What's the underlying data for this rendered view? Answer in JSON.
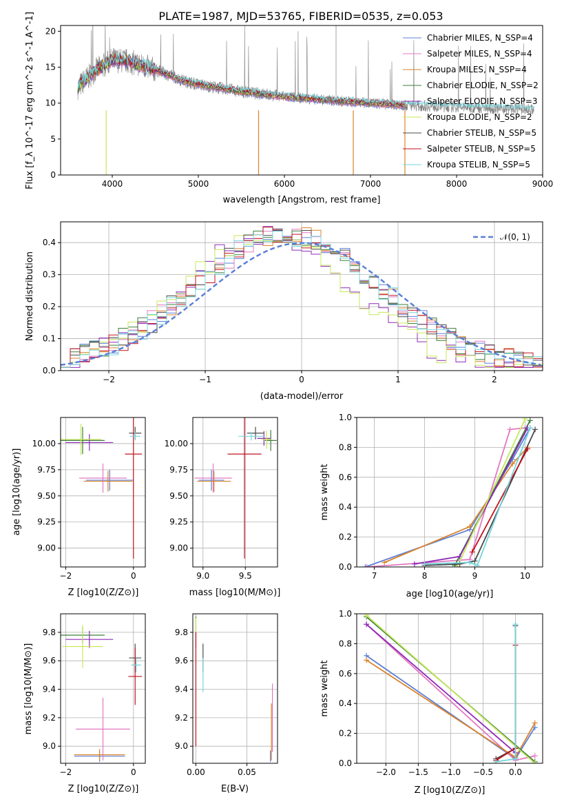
{
  "title": "PLATE=1987, MJD=53765, FIBERID=0535, z=0.053",
  "colors": {
    "Chabrier MILES": "#5b7fd6",
    "Salpeter MILES": "#e377c2",
    "Kroupa MILES": "#d9822b",
    "Chabrier ELODIE": "#3a7d3a",
    "Salpeter ELODIE": "#8e2ab7",
    "Kroupa ELODIE": "#c6e85a",
    "Chabrier STELIB": "#4a4a4a",
    "Salpeter STELIB": "#c1121f",
    "Kroupa STELIB": "#74d4dc"
  },
  "chart_data": [
    {
      "id": "spectrum",
      "type": "line",
      "xlabel": "wavelength [Angstrom, rest frame]",
      "ylabel": "Flux [f_λ 10^-17 erg cm^-2 s^-1 A^-1]",
      "xlim": [
        3400,
        9000
      ],
      "ylim": [
        0,
        20.8
      ],
      "xticks": [
        4000,
        5000,
        6000,
        7000,
        8000,
        9000
      ],
      "yticks": [
        0,
        5,
        10,
        15,
        20
      ],
      "legend_position": "top-right",
      "continuum": {
        "x": [
          3600,
          3800,
          4000,
          4200,
          4400,
          4600,
          4800,
          5000,
          5500,
          6000,
          6500,
          7000,
          7400
        ],
        "y": [
          12.2,
          14.5,
          16.0,
          15.8,
          15.0,
          14.2,
          13.2,
          12.6,
          11.6,
          10.9,
          10.4,
          10.0,
          9.7
        ]
      },
      "series": [
        {
          "name": "Chabrier MILES, N_SSP=4"
        },
        {
          "name": "Salpeter MILES, N_SSP=4"
        },
        {
          "name": "Kroupa MILES, N_SSP=4"
        },
        {
          "name": "Chabrier ELODIE, N_SSP=2"
        },
        {
          "name": "Salpeter ELODIE, N_SSP=3"
        },
        {
          "name": "Kroupa ELODIE, N_SSP=2"
        },
        {
          "name": "Chabrier STELIB, N_SSP=5"
        },
        {
          "name": "Salpeter STELIB, N_SSP=5"
        },
        {
          "name": "Kroupa STELIB, N_SSP=5"
        }
      ]
    },
    {
      "id": "residuals",
      "type": "line",
      "xlabel": "(data-model)/error",
      "ylabel": "Normed distribution",
      "xlim": [
        -2.5,
        2.5
      ],
      "ylim": [
        0,
        0.465
      ],
      "xticks": [
        -2,
        -1,
        0,
        1,
        2
      ],
      "yticks": [
        0.0,
        0.1,
        0.2,
        0.3,
        0.4
      ],
      "legend_label": "𝒩(0, 1)",
      "grid": true
    },
    {
      "id": "age_vs_Z",
      "type": "scatter",
      "xlabel": "Z [log10(Z/Z⊙)]",
      "ylabel": "age  [log10(age/yr)]",
      "xlim": [
        -2.15,
        0.35
      ],
      "ylim": [
        8.82,
        10.25
      ],
      "xticks": [
        -2,
        0
      ],
      "yticks": [
        9.0,
        9.25,
        9.5,
        9.75,
        10.0
      ],
      "points": [
        {
          "series": "Chabrier MILES",
          "x": -0.7,
          "y": 9.65,
          "xerr": 0.7,
          "yerr": 0.1
        },
        {
          "series": "Salpeter MILES",
          "x": -0.9,
          "y": 9.67,
          "xerr": 0.7,
          "yerr": 0.14
        },
        {
          "series": "Kroupa MILES",
          "x": -0.75,
          "y": 9.64,
          "xerr": 0.72,
          "yerr": 0.1
        },
        {
          "series": "Chabrier ELODIE",
          "x": -1.5,
          "y": 10.03,
          "xerr": 0.65,
          "yerr": 0.13
        },
        {
          "series": "Salpeter ELODIE",
          "x": -1.3,
          "y": 10.01,
          "xerr": 0.7,
          "yerr": 0.08
        },
        {
          "series": "Kroupa ELODIE",
          "x": -1.55,
          "y": 10.04,
          "xerr": 0.6,
          "yerr": 0.15
        },
        {
          "series": "Chabrier STELIB",
          "x": 0.05,
          "y": 10.1,
          "xerr": 0.18,
          "yerr": 0.06
        },
        {
          "series": "Salpeter STELIB",
          "x": 0.0,
          "y": 9.9,
          "xerr": 0.25,
          "yerr": 1.0
        },
        {
          "series": "Kroupa STELIB",
          "x": 0.05,
          "y": 10.07,
          "xerr": 0.15,
          "yerr": 0.04
        }
      ]
    },
    {
      "id": "age_vs_mass",
      "type": "scatter",
      "xlabel": "mass [log10(M/M⊙)]",
      "xlim": [
        8.88,
        9.88
      ],
      "ylim": [
        8.82,
        10.25
      ],
      "xticks": [
        9.0,
        9.5
      ],
      "yticks": [
        9.0,
        9.25,
        9.5,
        9.75,
        10.0
      ],
      "points": [
        {
          "series": "Chabrier MILES",
          "x": 9.1,
          "y": 9.65,
          "xerr": 0.15,
          "yerr": 0.1
        },
        {
          "series": "Salpeter MILES",
          "x": 9.12,
          "y": 9.67,
          "xerr": 0.22,
          "yerr": 0.14
        },
        {
          "series": "Kroupa MILES",
          "x": 9.13,
          "y": 9.64,
          "xerr": 0.2,
          "yerr": 0.1
        },
        {
          "series": "Chabrier ELODIE",
          "x": 9.8,
          "y": 10.03,
          "xerr": 0.07,
          "yerr": 0.1
        },
        {
          "series": "Salpeter ELODIE",
          "x": 9.72,
          "y": 10.05,
          "xerr": 0.08,
          "yerr": 0.07
        },
        {
          "series": "Kroupa ELODIE",
          "x": 9.75,
          "y": 10.04,
          "xerr": 0.06,
          "yerr": 0.09
        },
        {
          "series": "Chabrier STELIB",
          "x": 9.62,
          "y": 10.1,
          "xerr": 0.1,
          "yerr": 0.06
        },
        {
          "series": "Salpeter STELIB",
          "x": 9.49,
          "y": 9.9,
          "xerr": 0.2,
          "yerr": 1.0
        },
        {
          "series": "Kroupa STELIB",
          "x": 9.57,
          "y": 10.07,
          "xerr": 0.15,
          "yerr": 0.04
        }
      ]
    },
    {
      "id": "weight_vs_age",
      "type": "line",
      "xlabel": "age  [log10(age/yr)]",
      "ylabel": "mass weight",
      "xlim": [
        6.65,
        10.35
      ],
      "ylim": [
        0,
        1.0
      ],
      "xticks": [
        7,
        8,
        9,
        10
      ],
      "yticks": [
        0.0,
        0.2,
        0.4,
        0.6,
        0.8,
        1.0
      ],
      "series": [
        {
          "series": "Chabrier MILES",
          "x": [
            6.82,
            8.9,
            9.75,
            10.1
          ],
          "y": [
            0.0,
            0.25,
            0.72,
            0.93
          ]
        },
        {
          "series": "Salpeter MILES",
          "x": [
            6.85,
            8.9,
            9.7,
            10.0
          ],
          "y": [
            0.0,
            0.05,
            0.92,
            0.93
          ]
        },
        {
          "series": "Kroupa MILES",
          "x": [
            7.2,
            8.9,
            9.75,
            10.05
          ],
          "y": [
            0.03,
            0.27,
            0.69,
            0.8
          ]
        },
        {
          "series": "Chabrier ELODIE",
          "x": [
            8.6,
            10.1
          ],
          "y": [
            0.01,
            0.98
          ]
        },
        {
          "series": "Salpeter ELODIE",
          "x": [
            7.8,
            8.7,
            10.05
          ],
          "y": [
            0.02,
            0.07,
            0.93
          ]
        },
        {
          "series": "Kroupa ELODIE",
          "x": [
            8.65,
            10.0
          ],
          "y": [
            0.0,
            0.99
          ]
        },
        {
          "series": "Chabrier STELIB",
          "x": [
            8.0,
            8.7,
            9.0,
            10.2
          ],
          "y": [
            0.01,
            0.02,
            0.04,
            0.92
          ]
        },
        {
          "series": "Salpeter STELIB",
          "x": [
            8.95,
            10.05
          ],
          "y": [
            0.1,
            0.79
          ]
        },
        {
          "series": "Kroupa STELIB",
          "x": [
            8.0,
            8.9,
            9.05,
            10.1
          ],
          "y": [
            0.02,
            0.03,
            0.01,
            0.93
          ]
        }
      ]
    },
    {
      "id": "mass_vs_Z",
      "type": "scatter",
      "xlabel": "Z [log10(Z/Z⊙)]",
      "ylabel": "mass [log10(M/M⊙)]",
      "xlim": [
        -2.15,
        0.35
      ],
      "ylim": [
        8.88,
        9.93
      ],
      "xticks": [
        -2,
        0
      ],
      "yticks": [
        9.0,
        9.2,
        9.4,
        9.6,
        9.8
      ],
      "points": [
        {
          "series": "Chabrier MILES",
          "x": -1.0,
          "y": 8.93,
          "xerr": 0.75,
          "yerr": 0.04
        },
        {
          "series": "Salpeter MILES",
          "x": -0.9,
          "y": 9.12,
          "xerr": 0.8,
          "yerr": 0.22
        },
        {
          "series": "Kroupa MILES",
          "x": -1.0,
          "y": 8.94,
          "xerr": 0.75,
          "yerr": 0.04
        },
        {
          "series": "Chabrier ELODIE",
          "x": -1.5,
          "y": 9.78,
          "xerr": 0.65,
          "yerr": 0.06
        },
        {
          "series": "Salpeter ELODIE",
          "x": -1.3,
          "y": 9.75,
          "xerr": 0.7,
          "yerr": 0.06
        },
        {
          "series": "Kroupa ELODIE",
          "x": -1.5,
          "y": 9.7,
          "xerr": 0.6,
          "yerr": 0.15
        },
        {
          "series": "Chabrier STELIB",
          "x": 0.05,
          "y": 9.62,
          "xerr": 0.18,
          "yerr": 0.1
        },
        {
          "series": "Salpeter STELIB",
          "x": 0.05,
          "y": 9.49,
          "xerr": 0.2,
          "yerr": 0.2
        },
        {
          "series": "Kroupa STELIB",
          "x": 0.08,
          "y": 9.57,
          "xerr": 0.15,
          "yerr": 0.05
        }
      ]
    },
    {
      "id": "mass_vs_ebv",
      "type": "scatter",
      "xlabel": "E(B-V)",
      "xlim": [
        -0.003,
        0.08
      ],
      "ylim": [
        8.88,
        9.93
      ],
      "xticks": [
        0.0,
        0.05
      ],
      "yticks": [
        9.0,
        9.2,
        9.4,
        9.6,
        9.8
      ],
      "points": [
        {
          "series": "Chabrier MILES",
          "x": 0.073,
          "y": 8.93,
          "xerr": 0.0,
          "yerr": 0.04
        },
        {
          "series": "Salpeter MILES",
          "x": 0.075,
          "y": 9.2,
          "xerr": 0.0,
          "yerr": 0.24
        },
        {
          "series": "Kroupa MILES",
          "x": 0.074,
          "y": 9.1,
          "xerr": 0.0,
          "yerr": 0.2
        },
        {
          "series": "Chabrier ELODIE",
          "x": 0.0,
          "y": 9.85,
          "xerr": 0.0,
          "yerr": 0.06
        },
        {
          "series": "Salpeter ELODIE",
          "x": 0.0,
          "y": 9.75,
          "xerr": 0.0,
          "yerr": 0.06
        },
        {
          "series": "Kroupa ELODIE",
          "x": 0.0,
          "y": 9.8,
          "xerr": 0.0,
          "yerr": 0.1
        },
        {
          "series": "Chabrier STELIB",
          "x": 0.007,
          "y": 9.62,
          "xerr": 0.0,
          "yerr": 0.1
        },
        {
          "series": "Salpeter STELIB",
          "x": 0.0,
          "y": 9.4,
          "xerr": 0.0,
          "yerr": 0.4
        },
        {
          "series": "Kroupa STELIB",
          "x": 0.007,
          "y": 9.5,
          "xerr": 0.0,
          "yerr": 0.12
        }
      ]
    },
    {
      "id": "weight_vs_Z",
      "type": "line",
      "xlabel": "Z [log10(Z/Z⊙)]",
      "ylabel": "mass weight",
      "xlim": [
        -2.45,
        0.42
      ],
      "ylim": [
        0,
        1.0
      ],
      "xticks": [
        -2.0,
        -1.5,
        -1.0,
        -0.5,
        0.0
      ],
      "yticks": [
        0.0,
        0.2,
        0.4,
        0.6,
        0.8,
        1.0
      ],
      "series": [
        {
          "series": "Chabrier MILES",
          "x": [
            -2.3,
            0.0,
            0.3
          ],
          "y": [
            0.72,
            0.03,
            0.24
          ]
        },
        {
          "series": "Salpeter MILES",
          "x": [
            -2.3,
            0.0,
            0.3
          ],
          "y": [
            0.93,
            0.02,
            0.05
          ]
        },
        {
          "series": "Kroupa MILES",
          "x": [
            -2.3,
            0.0,
            0.3
          ],
          "y": [
            0.69,
            0.04,
            0.27
          ]
        },
        {
          "series": "Chabrier ELODIE",
          "x": [
            -2.3,
            0.3
          ],
          "y": [
            0.98,
            0.01
          ]
        },
        {
          "series": "Salpeter ELODIE",
          "x": [
            -2.3,
            0.0
          ],
          "y": [
            0.93,
            0.07
          ]
        },
        {
          "series": "Kroupa ELODIE",
          "x": [
            -2.3,
            0.3
          ],
          "y": [
            0.99,
            0.0
          ]
        },
        {
          "series": "Chabrier STELIB",
          "x": [
            -0.3,
            0.0,
            0.0
          ],
          "y": [
            0.03,
            0.1,
            0.92
          ]
        },
        {
          "series": "Salpeter STELIB",
          "x": [
            -0.3,
            0.0,
            0.0
          ],
          "y": [
            0.02,
            0.1,
            0.79
          ]
        },
        {
          "series": "Kroupa STELIB",
          "x": [
            -0.3,
            0.0,
            0.0
          ],
          "y": [
            0.01,
            0.03,
            0.93
          ]
        }
      ]
    }
  ]
}
